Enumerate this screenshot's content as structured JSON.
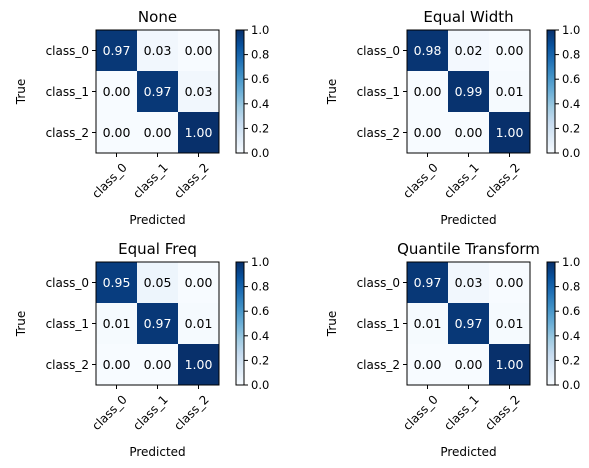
{
  "chart_data": [
    {
      "type": "heatmap",
      "title": "None",
      "xlabel": "Predicted",
      "ylabel": "True",
      "x_categories": [
        "class_0",
        "class_1",
        "class_2"
      ],
      "y_categories": [
        "class_0",
        "class_1",
        "class_2"
      ],
      "values": [
        [
          0.97,
          0.03,
          0.0
        ],
        [
          0.0,
          0.97,
          0.03
        ],
        [
          0.0,
          0.0,
          1.0
        ]
      ],
      "value_labels": [
        [
          "0.97",
          "0.03",
          "0.00"
        ],
        [
          "0.00",
          "0.97",
          "0.03"
        ],
        [
          "0.00",
          "0.00",
          "1.00"
        ]
      ],
      "colorbar": {
        "range": [
          0.0,
          1.0
        ],
        "ticks": [
          "0.0",
          "0.2",
          "0.4",
          "0.6",
          "0.8",
          "1.0"
        ]
      },
      "colormap": "Blues"
    },
    {
      "type": "heatmap",
      "title": "Equal Width",
      "xlabel": "Predicted",
      "ylabel": "True",
      "x_categories": [
        "class_0",
        "class_1",
        "class_2"
      ],
      "y_categories": [
        "class_0",
        "class_1",
        "class_2"
      ],
      "values": [
        [
          0.98,
          0.02,
          0.0
        ],
        [
          0.0,
          0.99,
          0.01
        ],
        [
          0.0,
          0.0,
          1.0
        ]
      ],
      "value_labels": [
        [
          "0.98",
          "0.02",
          "0.00"
        ],
        [
          "0.00",
          "0.99",
          "0.01"
        ],
        [
          "0.00",
          "0.00",
          "1.00"
        ]
      ],
      "colorbar": {
        "range": [
          0.0,
          1.0
        ],
        "ticks": [
          "0.0",
          "0.2",
          "0.4",
          "0.6",
          "0.8",
          "1.0"
        ]
      },
      "colormap": "Blues"
    },
    {
      "type": "heatmap",
      "title": "Equal Freq",
      "xlabel": "Predicted",
      "ylabel": "True",
      "x_categories": [
        "class_0",
        "class_1",
        "class_2"
      ],
      "y_categories": [
        "class_0",
        "class_1",
        "class_2"
      ],
      "values": [
        [
          0.95,
          0.05,
          0.0
        ],
        [
          0.01,
          0.97,
          0.01
        ],
        [
          0.0,
          0.0,
          1.0
        ]
      ],
      "value_labels": [
        [
          "0.95",
          "0.05",
          "0.00"
        ],
        [
          "0.01",
          "0.97",
          "0.01"
        ],
        [
          "0.00",
          "0.00",
          "1.00"
        ]
      ],
      "colorbar": {
        "range": [
          0.0,
          1.0
        ],
        "ticks": [
          "0.0",
          "0.2",
          "0.4",
          "0.6",
          "0.8",
          "1.0"
        ]
      },
      "colormap": "Blues"
    },
    {
      "type": "heatmap",
      "title": "Quantile Transform",
      "xlabel": "Predicted",
      "ylabel": "True",
      "x_categories": [
        "class_0",
        "class_1",
        "class_2"
      ],
      "y_categories": [
        "class_0",
        "class_1",
        "class_2"
      ],
      "values": [
        [
          0.97,
          0.03,
          0.0
        ],
        [
          0.01,
          0.97,
          0.01
        ],
        [
          0.0,
          0.0,
          1.0
        ]
      ],
      "value_labels": [
        [
          "0.97",
          "0.03",
          "0.00"
        ],
        [
          "0.01",
          "0.97",
          "0.01"
        ],
        [
          "0.00",
          "0.00",
          "1.00"
        ]
      ],
      "colorbar": {
        "range": [
          0.0,
          1.0
        ],
        "ticks": [
          "0.0",
          "0.2",
          "0.4",
          "0.6",
          "0.8",
          "1.0"
        ]
      },
      "colormap": "Blues"
    }
  ]
}
